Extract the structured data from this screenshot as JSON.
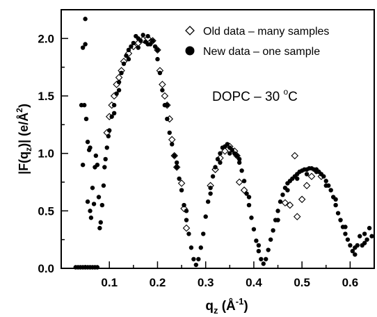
{
  "chart_data": {
    "type": "scatter",
    "title": "",
    "xlabel": {
      "base": "q",
      "sub": "z",
      "unit_open": " (Å",
      "unit_sup": "-1",
      "unit_close": ")"
    },
    "ylabel": {
      "pre": "|F(q",
      "sub": "z",
      "post": ")| (e/Å",
      "sup": "2",
      "close": ")"
    },
    "xlim": [
      0.0,
      0.65
    ],
    "ylim": [
      0.0,
      2.25
    ],
    "x_ticks": [
      "0.1",
      "0.2",
      "0.3",
      "0.4",
      "0.5",
      "0.6"
    ],
    "x_tick_values": [
      0.1,
      0.2,
      0.3,
      0.4,
      0.5,
      0.6
    ],
    "y_ticks": [
      "0.0",
      "0.5",
      "1.0",
      "1.5",
      "2.0"
    ],
    "y_tick_values": [
      0.0,
      0.5,
      1.0,
      1.5,
      2.0
    ],
    "grid": false,
    "legend_position": "top-right",
    "annotation": {
      "text": "DOPC – 30 ",
      "sup": "o",
      "unit": "C"
    },
    "series": [
      {
        "name": "Old data – many samples",
        "marker": "open-diamond",
        "points": [
          [
            0.095,
            1.18
          ],
          [
            0.1,
            1.32
          ],
          [
            0.105,
            1.42
          ],
          [
            0.11,
            1.5
          ],
          [
            0.115,
            1.6
          ],
          [
            0.12,
            1.66
          ],
          [
            0.125,
            1.72
          ],
          [
            0.13,
            1.8
          ],
          [
            0.14,
            1.87
          ],
          [
            0.15,
            1.93
          ],
          [
            0.16,
            1.96
          ],
          [
            0.17,
            1.99
          ],
          [
            0.18,
            2.0
          ],
          [
            0.19,
            1.98
          ],
          [
            0.2,
            1.9
          ],
          [
            0.205,
            1.72
          ],
          [
            0.21,
            1.6
          ],
          [
            0.215,
            1.5
          ],
          [
            0.22,
            1.42
          ],
          [
            0.225,
            1.3
          ],
          [
            0.23,
            1.12
          ],
          [
            0.235,
            0.98
          ],
          [
            0.24,
            0.88
          ],
          [
            0.25,
            0.74
          ],
          [
            0.255,
            0.52
          ],
          [
            0.26,
            0.35
          ],
          [
            0.31,
            0.72
          ],
          [
            0.32,
            0.86
          ],
          [
            0.33,
            0.96
          ],
          [
            0.34,
            1.02
          ],
          [
            0.35,
            1.06
          ],
          [
            0.36,
            1.02
          ],
          [
            0.365,
            0.98
          ],
          [
            0.37,
            0.75
          ],
          [
            0.38,
            0.68
          ],
          [
            0.465,
            0.57
          ],
          [
            0.475,
            0.55
          ],
          [
            0.485,
            0.98
          ],
          [
            0.49,
            0.45
          ],
          [
            0.5,
            0.6
          ],
          [
            0.51,
            0.72
          ],
          [
            0.52,
            0.8
          ],
          [
            0.53,
            0.85
          ],
          [
            0.54,
            0.8
          ]
        ]
      },
      {
        "name": "New data – one sample",
        "marker": "filled-circle",
        "points": [
          [
            0.05,
            2.17
          ],
          [
            0.045,
            1.92
          ],
          [
            0.05,
            1.95
          ],
          [
            0.042,
            1.42
          ],
          [
            0.048,
            1.42
          ],
          [
            0.052,
            1.3
          ],
          [
            0.055,
            1.1
          ],
          [
            0.06,
            1.05
          ],
          [
            0.058,
            1.03
          ],
          [
            0.065,
            0.7
          ],
          [
            0.068,
            0.56
          ],
          [
            0.07,
            0.88
          ],
          [
            0.072,
            0.98
          ],
          [
            0.075,
            0.9
          ],
          [
            0.078,
            0.62
          ],
          [
            0.08,
            0.35
          ],
          [
            0.082,
            0.4
          ],
          [
            0.085,
            0.55
          ],
          [
            0.088,
            0.72
          ],
          [
            0.09,
            0.88
          ],
          [
            0.092,
            0.95
          ],
          [
            0.095,
            1.05
          ],
          [
            0.098,
            1.15
          ],
          [
            0.045,
            0.9
          ],
          [
            0.055,
            0.58
          ],
          [
            0.06,
            0.5
          ],
          [
            0.062,
            0.44
          ],
          [
            0.03,
            0.0
          ],
          [
            0.035,
            0.0
          ],
          [
            0.04,
            0.0
          ],
          [
            0.045,
            0.0
          ],
          [
            0.05,
            0.0
          ],
          [
            0.055,
            0.0
          ],
          [
            0.06,
            0.0
          ],
          [
            0.065,
            0.0
          ],
          [
            0.07,
            0.0
          ],
          [
            0.075,
            0.0
          ],
          [
            0.1,
            1.2
          ],
          [
            0.105,
            1.32
          ],
          [
            0.11,
            1.42
          ],
          [
            0.115,
            1.52
          ],
          [
            0.12,
            1.62
          ],
          [
            0.125,
            1.7
          ],
          [
            0.13,
            1.78
          ],
          [
            0.135,
            1.85
          ],
          [
            0.14,
            1.9
          ],
          [
            0.145,
            1.93
          ],
          [
            0.15,
            1.96
          ],
          [
            0.155,
            2.02
          ],
          [
            0.16,
            2.0
          ],
          [
            0.165,
            1.98
          ],
          [
            0.17,
            2.03
          ],
          [
            0.175,
            1.97
          ],
          [
            0.18,
            2.02
          ],
          [
            0.185,
            1.95
          ],
          [
            0.19,
            1.98
          ],
          [
            0.195,
            1.93
          ],
          [
            0.2,
            1.82
          ],
          [
            0.205,
            1.7
          ],
          [
            0.21,
            1.55
          ],
          [
            0.215,
            1.42
          ],
          [
            0.22,
            1.3
          ],
          [
            0.225,
            1.18
          ],
          [
            0.23,
            1.08
          ],
          [
            0.235,
            0.98
          ],
          [
            0.24,
            0.88
          ],
          [
            0.245,
            0.78
          ],
          [
            0.25,
            0.68
          ],
          [
            0.255,
            0.55
          ],
          [
            0.26,
            0.42
          ],
          [
            0.265,
            0.3
          ],
          [
            0.27,
            0.18
          ],
          [
            0.275,
            0.08
          ],
          [
            0.28,
            0.03
          ],
          [
            0.285,
            0.08
          ],
          [
            0.29,
            0.18
          ],
          [
            0.295,
            0.3
          ],
          [
            0.3,
            0.45
          ],
          [
            0.305,
            0.58
          ],
          [
            0.31,
            0.7
          ],
          [
            0.315,
            0.8
          ],
          [
            0.32,
            0.88
          ],
          [
            0.325,
            0.95
          ],
          [
            0.33,
            1.0
          ],
          [
            0.335,
            1.05
          ],
          [
            0.34,
            1.06
          ],
          [
            0.345,
            1.08
          ],
          [
            0.35,
            1.05
          ],
          [
            0.355,
            1.03
          ],
          [
            0.36,
            1.0
          ],
          [
            0.365,
            0.98
          ],
          [
            0.37,
            0.92
          ],
          [
            0.375,
            0.85
          ],
          [
            0.38,
            0.76
          ],
          [
            0.385,
            0.65
          ],
          [
            0.39,
            0.55
          ],
          [
            0.395,
            0.44
          ],
          [
            0.4,
            0.34
          ],
          [
            0.405,
            0.24
          ],
          [
            0.41,
            0.15
          ],
          [
            0.415,
            0.08
          ],
          [
            0.42,
            0.04
          ],
          [
            0.425,
            0.08
          ],
          [
            0.43,
            0.16
          ],
          [
            0.435,
            0.25
          ],
          [
            0.44,
            0.33
          ],
          [
            0.445,
            0.42
          ],
          [
            0.45,
            0.5
          ],
          [
            0.455,
            0.58
          ],
          [
            0.46,
            0.64
          ],
          [
            0.465,
            0.7
          ],
          [
            0.47,
            0.74
          ],
          [
            0.475,
            0.76
          ],
          [
            0.48,
            0.78
          ],
          [
            0.485,
            0.8
          ],
          [
            0.49,
            0.82
          ],
          [
            0.495,
            0.84
          ],
          [
            0.5,
            0.85
          ],
          [
            0.505,
            0.86
          ],
          [
            0.51,
            0.86
          ],
          [
            0.515,
            0.87
          ],
          [
            0.52,
            0.87
          ],
          [
            0.525,
            0.86
          ],
          [
            0.53,
            0.86
          ],
          [
            0.535,
            0.84
          ],
          [
            0.54,
            0.82
          ],
          [
            0.545,
            0.8
          ],
          [
            0.55,
            0.76
          ],
          [
            0.555,
            0.72
          ],
          [
            0.56,
            0.68
          ],
          [
            0.565,
            0.62
          ],
          [
            0.57,
            0.55
          ],
          [
            0.575,
            0.48
          ],
          [
            0.58,
            0.42
          ],
          [
            0.585,
            0.36
          ],
          [
            0.59,
            0.3
          ],
          [
            0.595,
            0.25
          ],
          [
            0.6,
            0.2
          ],
          [
            0.605,
            0.15
          ],
          [
            0.61,
            0.12
          ],
          [
            0.615,
            0.2
          ],
          [
            0.62,
            0.28
          ],
          [
            0.625,
            0.2
          ],
          [
            0.63,
            0.3
          ],
          [
            0.635,
            0.25
          ],
          [
            0.64,
            0.35
          ],
          [
            0.645,
            0.28
          ],
          [
            0.65,
            0.22
          ],
          [
            0.11,
            1.35
          ],
          [
            0.12,
            1.55
          ],
          [
            0.14,
            1.82
          ],
          [
            0.16,
            1.92
          ],
          [
            0.18,
            1.95
          ],
          [
            0.2,
            1.9
          ],
          [
            0.22,
            1.42
          ],
          [
            0.24,
            0.92
          ],
          [
            0.26,
            0.5
          ],
          [
            0.31,
            0.65
          ],
          [
            0.33,
            0.92
          ],
          [
            0.35,
            1.0
          ],
          [
            0.37,
            0.95
          ],
          [
            0.39,
            0.62
          ],
          [
            0.41,
            0.2
          ],
          [
            0.45,
            0.42
          ],
          [
            0.47,
            0.68
          ],
          [
            0.49,
            0.78
          ],
          [
            0.51,
            0.82
          ],
          [
            0.53,
            0.84
          ],
          [
            0.55,
            0.72
          ],
          [
            0.57,
            0.6
          ],
          [
            0.59,
            0.36
          ],
          [
            0.61,
            0.18
          ],
          [
            0.63,
            0.22
          ]
        ]
      }
    ]
  }
}
